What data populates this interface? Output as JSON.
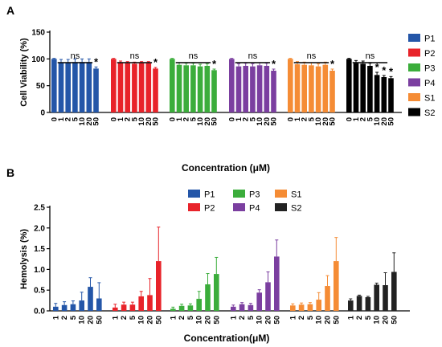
{
  "chart_data": [
    {
      "panel": "A",
      "type": "bar",
      "ylabel": "Cell Viability (%)",
      "xlabel": "Concentration (μM)",
      "ylim": [
        0,
        150
      ],
      "yticks": [
        0,
        50,
        100,
        150
      ],
      "categories": [
        "0",
        "1",
        "2",
        "5",
        "10",
        "20",
        "50"
      ],
      "series": [
        {
          "name": "P1",
          "color": "#2456a8",
          "values": [
            100,
            93,
            93,
            94,
            94,
            94,
            82
          ],
          "errors": [
            1,
            6,
            6,
            6,
            6,
            6,
            3
          ],
          "bracket": "ns",
          "star": "*"
        },
        {
          "name": "P2",
          "color": "#e8232a",
          "values": [
            100,
            93,
            92,
            91,
            92,
            92,
            82
          ],
          "errors": [
            1,
            3,
            3,
            3,
            3,
            3,
            2
          ],
          "bracket": "ns",
          "star": "*"
        },
        {
          "name": "P3",
          "color": "#3bad3b",
          "values": [
            100,
            89,
            88,
            88,
            86,
            87,
            79
          ],
          "errors": [
            1,
            4,
            4,
            4,
            4,
            4,
            2
          ],
          "bracket": "ns",
          "star": "*"
        },
        {
          "name": "P4",
          "color": "#7b3fa0",
          "values": [
            100,
            86,
            87,
            86,
            88,
            87,
            78
          ],
          "errors": [
            1,
            5,
            5,
            5,
            5,
            5,
            3
          ],
          "bracket": "ns",
          "star": "*"
        },
        {
          "name": "S1",
          "color": "#f58c35",
          "values": [
            100,
            90,
            89,
            88,
            86,
            89,
            78
          ],
          "errors": [
            1,
            5,
            5,
            5,
            5,
            5,
            3
          ],
          "bracket": "ns",
          "star": "*"
        },
        {
          "name": "S2",
          "color": "#000000",
          "values": [
            100,
            92,
            91,
            87,
            70,
            66,
            64
          ],
          "errors": [
            1,
            5,
            5,
            5,
            5,
            3,
            3
          ],
          "bracket": "ns",
          "stars": [
            false,
            false,
            false,
            false,
            true,
            true,
            true
          ]
        }
      ],
      "legend_position": "right"
    },
    {
      "panel": "B",
      "type": "bar",
      "ylabel": "Hemolysis (%)",
      "xlabel": "Concentration(μM)",
      "ylim": [
        0,
        2.5
      ],
      "yticks": [
        "0.0",
        "0.5",
        "1.0",
        "1.5",
        "2.0",
        "2.5"
      ],
      "categories": [
        "1",
        "2",
        "5",
        "10",
        "20",
        "50"
      ],
      "series": [
        {
          "name": "P1",
          "color": "#2456a8",
          "values": [
            0.1,
            0.14,
            0.16,
            0.25,
            0.58,
            0.3
          ],
          "errors": [
            0.08,
            0.08,
            0.08,
            0.2,
            0.22,
            0.38
          ]
        },
        {
          "name": "P2",
          "color": "#e8232a",
          "values": [
            0.08,
            0.15,
            0.15,
            0.35,
            0.38,
            1.2
          ],
          "errors": [
            0.08,
            0.06,
            0.06,
            0.12,
            0.4,
            0.82
          ]
        },
        {
          "name": "P3",
          "color": "#3bad3b",
          "values": [
            0.05,
            0.12,
            0.13,
            0.29,
            0.64,
            0.89
          ],
          "errors": [
            0.04,
            0.04,
            0.04,
            0.18,
            0.26,
            0.4
          ]
        },
        {
          "name": "P4",
          "color": "#7b3fa0",
          "values": [
            0.1,
            0.16,
            0.14,
            0.44,
            0.69,
            1.31
          ],
          "errors": [
            0.04,
            0.04,
            0.04,
            0.07,
            0.25,
            0.4
          ]
        },
        {
          "name": "S1",
          "color": "#f58c35",
          "values": [
            0.13,
            0.15,
            0.16,
            0.27,
            0.6,
            1.2
          ],
          "errors": [
            0.04,
            0.04,
            0.04,
            0.17,
            0.25,
            0.57
          ]
        },
        {
          "name": "S2",
          "color": "#222222",
          "values": [
            0.25,
            0.36,
            0.33,
            0.63,
            0.62,
            0.94
          ],
          "errors": [
            0.04,
            0.02,
            0.02,
            0.04,
            0.3,
            0.46
          ]
        }
      ],
      "legend_position": "top"
    }
  ]
}
